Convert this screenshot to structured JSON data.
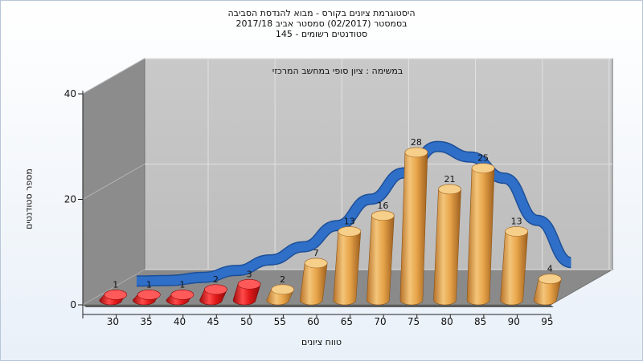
{
  "chart_data": {
    "type": "bar",
    "title_lines": [
      "היסטוגרמת ציונים בקורס - מבוא להנדסת הסביבה",
      "בסמסטר  (02/2017)  סמסטר אביב 2017/18",
      "סטודנטים רשומים - 145"
    ],
    "annotation": "במשימה : ציון סופי במחשב המרכזי",
    "xlabel": "טווח ציונים",
    "ylabel": "מספר סטודנטים",
    "categories": [
      "30",
      "35",
      "40",
      "45",
      "50",
      "55",
      "60",
      "65",
      "70",
      "75",
      "80",
      "85",
      "90",
      "95"
    ],
    "values": [
      1,
      1,
      1,
      2,
      3,
      2,
      7,
      13,
      16,
      28,
      21,
      25,
      13,
      4
    ],
    "yticks": [
      "0",
      "20",
      "40"
    ],
    "ylim": [
      0,
      40
    ],
    "failing_color": "#e01818",
    "passing_color": "#e8a54a",
    "curve_color": "#2f6fc8",
    "curve_values": [
      0.5,
      0.6,
      1.2,
      2.5,
      4.5,
      7,
      11,
      16,
      21,
      26,
      24,
      20,
      12,
      4
    ],
    "grid": true
  }
}
